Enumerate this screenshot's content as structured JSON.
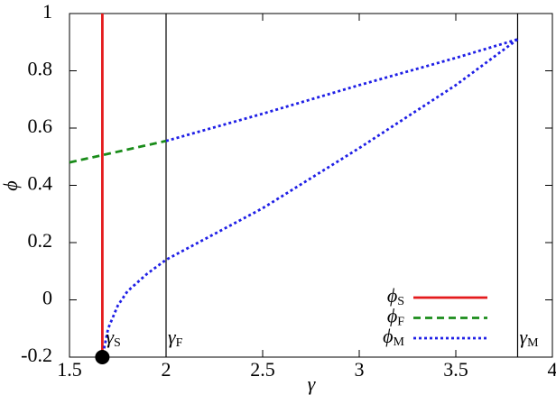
{
  "chart_data": {
    "type": "line",
    "xlabel": "γ",
    "ylabel": "ϕ",
    "xlim": [
      1.5,
      4
    ],
    "ylim": [
      -0.2,
      1
    ],
    "xticks": [
      1.5,
      2,
      2.5,
      3,
      3.5,
      4
    ],
    "yticks": [
      -0.2,
      0,
      0.2,
      0.4,
      0.6,
      0.8,
      1
    ],
    "legend": "lower right",
    "series": [
      {
        "name": "ϕS",
        "color": "#e41a1c",
        "style": "solid",
        "x": [
          1.67,
          1.67
        ],
        "values": [
          -0.2,
          1
        ]
      },
      {
        "name": "ϕF",
        "color": "#1a8c1a",
        "style": "dashed",
        "x": [
          1.5,
          2
        ],
        "values": [
          0.48,
          0.555
        ]
      },
      {
        "name": "ϕM",
        "color": "#1f1fe6",
        "style": "dotted",
        "x": [
          2,
          2.5,
          3,
          3.5,
          3.82,
          null,
          3.82,
          3.5,
          3,
          2.5,
          2,
          1.9,
          1.8,
          1.75,
          1.7,
          1.67
        ],
        "values": [
          0.555,
          0.65,
          0.75,
          0.845,
          0.91,
          null,
          0.91,
          0.75,
          0.53,
          0.32,
          0.14,
          0.09,
          0.03,
          -0.02,
          -0.1,
          -0.2
        ]
      }
    ],
    "vlines": [
      {
        "x": 2,
        "label": "γF"
      },
      {
        "x": 3.82,
        "label": "γM"
      }
    ],
    "point": {
      "x": 1.67,
      "y": -0.2,
      "label": "γS"
    }
  }
}
